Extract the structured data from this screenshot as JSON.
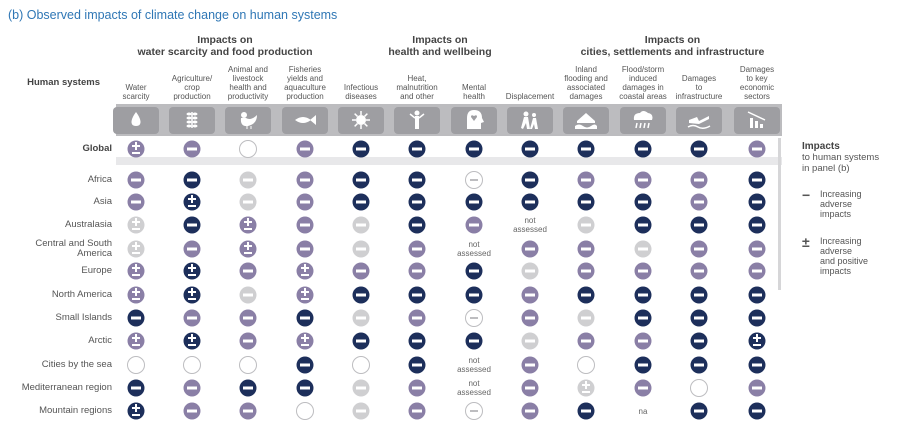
{
  "panel_title": "(b) Observed impacts of climate change on human systems",
  "human_systems_label": "Human systems",
  "groups": [
    {
      "title_line1": "Impacts on",
      "title_line2": "water scarcity and food production"
    },
    {
      "title_line1": "Impacts on",
      "title_line2": "health and wellbeing"
    },
    {
      "title_line1": "Impacts on",
      "title_line2": "cities, settlements and infrastructure"
    }
  ],
  "columns": [
    {
      "label": [
        "Water",
        "scarcity"
      ],
      "icon": "water-drop-icon"
    },
    {
      "label": [
        "Agriculture/",
        "crop",
        "production"
      ],
      "icon": "wheat-icon"
    },
    {
      "label": [
        "Animal and",
        "livestock",
        "health and",
        "productivity"
      ],
      "icon": "chicken-icon"
    },
    {
      "label": [
        "Fisheries",
        "yields and",
        "aquaculture",
        "production"
      ],
      "icon": "fish-icon"
    },
    {
      "label": [
        "Infectious",
        "diseases"
      ],
      "icon": "virus-icon"
    },
    {
      "label": [
        "Heat,",
        "malnutrition",
        "and other"
      ],
      "icon": "heat-person-icon"
    },
    {
      "label": [
        "Mental",
        "health"
      ],
      "icon": "head-heart-icon"
    },
    {
      "label": [
        "Displacement"
      ],
      "icon": "displaced-people-icon"
    },
    {
      "label": [
        "Inland",
        "flooding and",
        "associated",
        "damages"
      ],
      "icon": "flooded-house-icon"
    },
    {
      "label": [
        "Flood/storm",
        "induced",
        "damages in",
        "coastal areas"
      ],
      "icon": "storm-cloud-icon"
    },
    {
      "label": [
        "Damages",
        "to",
        "infrastructure"
      ],
      "icon": "damaged-bridge-icon"
    },
    {
      "label": [
        "Damages",
        "to key",
        "economic",
        "sectors"
      ],
      "icon": "declining-bars-icon"
    }
  ],
  "legend": {
    "title": "Impacts",
    "subtitle": [
      "to human systems",
      "in panel (b)"
    ],
    "items": [
      {
        "symbol": "−",
        "label": [
          "Increasing",
          "adverse",
          "impacts"
        ]
      },
      {
        "symbol": "±",
        "label": [
          "Increasing",
          "adverse",
          "and positive",
          "impacts"
        ]
      }
    ]
  },
  "colors": {
    "title_blue": "#2f77b5",
    "dark_navy": "#1d2f5b",
    "purple": "#8a7fa6",
    "light_gray": "#cfcfd1",
    "header_band": "#bcbcbf",
    "icon_tile": "#9e9ea2"
  },
  "chart_data": {
    "type": "table",
    "title": "(b) Observed impacts of climate change on human systems",
    "symbol_key": {
      "N-": "increasing adverse impacts, high confidence (dark navy minus)",
      "P-": "increasing adverse impacts, medium confidence (purple minus)",
      "L-": "increasing adverse impacts, low confidence (light gray minus)",
      "N+": "increasing adverse and positive impacts, high confidence",
      "P+": "increasing adverse and positive impacts, medium confidence",
      "L+": "increasing adverse and positive impacts, low confidence",
      "O": "limited evidence / no assessment (outline circle)",
      "H": "hollow circle with minus",
      "NA": "not assessed",
      "na": "na"
    },
    "rows": [
      {
        "name": "Global",
        "values": [
          "P+",
          "P-",
          "O",
          "P-",
          "N-",
          "N-",
          "N-",
          "N-",
          "N-",
          "N-",
          "N-",
          "P-"
        ]
      },
      {
        "name": "Africa",
        "values": [
          "P-",
          "N-",
          "L-",
          "P-",
          "N-",
          "N-",
          "H",
          "N-",
          "P-",
          "P-",
          "P-",
          "N-"
        ]
      },
      {
        "name": "Asia",
        "values": [
          "P-",
          "N+",
          "L-",
          "P-",
          "N-",
          "N-",
          "N-",
          "N-",
          "N-",
          "N-",
          "P-",
          "N-"
        ]
      },
      {
        "name": "Australasia",
        "values": [
          "L+",
          "N-",
          "P+",
          "P-",
          "L-",
          "N-",
          "P-",
          "NA",
          "L-",
          "N-",
          "N-",
          "N-"
        ]
      },
      {
        "name": "Central and South America",
        "values": [
          "L+",
          "P-",
          "P+",
          "P-",
          "L-",
          "P-",
          "NA",
          "P-",
          "P-",
          "L-",
          "P-",
          "P-"
        ]
      },
      {
        "name": "Europe",
        "values": [
          "P+",
          "N+",
          "P-",
          "P+",
          "P-",
          "P-",
          "N-",
          "L-",
          "P-",
          "P-",
          "P-",
          "P-"
        ]
      },
      {
        "name": "North America",
        "values": [
          "P+",
          "N+",
          "L-",
          "P+",
          "N-",
          "N-",
          "N-",
          "P-",
          "N-",
          "N-",
          "N-",
          "N-"
        ]
      },
      {
        "name": "Small Islands",
        "values": [
          "N-",
          "P-",
          "P-",
          "N-",
          "L-",
          "P-",
          "H",
          "P-",
          "L-",
          "N-",
          "N-",
          "N-"
        ]
      },
      {
        "name": "Arctic",
        "values": [
          "P+",
          "N+",
          "P-",
          "P+",
          "N-",
          "N-",
          "N-",
          "L-",
          "P-",
          "P-",
          "N-",
          "N+"
        ]
      },
      {
        "name": "Cities by the sea",
        "values": [
          "O",
          "O",
          "O",
          "N-",
          "O",
          "N-",
          "NA",
          "P-",
          "O",
          "N-",
          "N-",
          "N-"
        ]
      },
      {
        "name": "Mediterranean region",
        "values": [
          "N-",
          "P-",
          "N-",
          "N-",
          "L-",
          "P-",
          "NA",
          "P-",
          "L+",
          "P-",
          "O",
          "P-"
        ]
      },
      {
        "name": "Mountain regions",
        "values": [
          "N+",
          "P-",
          "P-",
          "O",
          "L-",
          "P-",
          "H",
          "P-",
          "N-",
          "na",
          "N-",
          "N-"
        ]
      }
    ]
  }
}
